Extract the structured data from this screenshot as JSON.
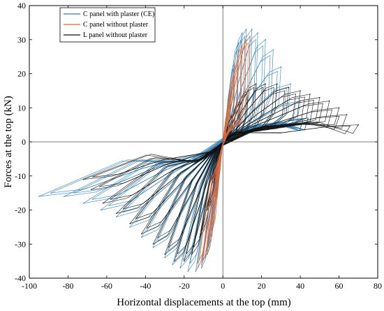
{
  "chart_data": {
    "type": "line",
    "xlabel": "Horizontal displacements at the top (mm)",
    "ylabel": "Forces at the top (kN)",
    "xlim": [
      -100,
      80
    ],
    "ylim": [
      -40,
      40
    ],
    "xticks": [
      -100,
      -80,
      -60,
      -40,
      -20,
      0,
      20,
      40,
      60,
      80
    ],
    "yticks": [
      -40,
      -30,
      -20,
      -10,
      0,
      10,
      20,
      30,
      40
    ],
    "grid": false,
    "zero_lines": true,
    "legend_position": "top-left",
    "series": [
      {
        "name": "C panel with plaster (CE)",
        "color": "#2f7fb5",
        "peak_points": [
          {
            "x": 2,
            "y": 4
          },
          {
            "x": 4,
            "y": 14
          },
          {
            "x": 6,
            "y": 23
          },
          {
            "x": 8,
            "y": 29
          },
          {
            "x": 10,
            "y": 32
          },
          {
            "x": 12,
            "y": 33
          },
          {
            "x": 15,
            "y": 33
          },
          {
            "x": 18,
            "y": 32
          },
          {
            "x": 22,
            "y": 30
          },
          {
            "x": 26,
            "y": 27
          },
          {
            "x": 30,
            "y": 22
          },
          {
            "x": 35,
            "y": 17
          },
          {
            "x": 40,
            "y": 12
          },
          {
            "x": 44,
            "y": 7
          }
        ],
        "valley_points": [
          {
            "x": -2,
            "y": -6
          },
          {
            "x": -4,
            "y": -16
          },
          {
            "x": -6,
            "y": -26
          },
          {
            "x": -8,
            "y": -33
          },
          {
            "x": -11,
            "y": -37
          },
          {
            "x": -14,
            "y": -38
          },
          {
            "x": -18,
            "y": -38
          },
          {
            "x": -22,
            "y": -37
          },
          {
            "x": -26,
            "y": -36
          },
          {
            "x": -30,
            "y": -34
          },
          {
            "x": -36,
            "y": -31
          },
          {
            "x": -42,
            "y": -28
          },
          {
            "x": -48,
            "y": -25
          },
          {
            "x": -55,
            "y": -22
          },
          {
            "x": -63,
            "y": -20
          },
          {
            "x": -72,
            "y": -18
          },
          {
            "x": -82,
            "y": -16
          },
          {
            "x": -95,
            "y": -16
          }
        ]
      },
      {
        "name": "C panel without plaster",
        "color": "#d9693b",
        "peak_points": [
          {
            "x": 1,
            "y": 3
          },
          {
            "x": 2,
            "y": 8
          },
          {
            "x": 4,
            "y": 14
          },
          {
            "x": 6,
            "y": 20
          },
          {
            "x": 8,
            "y": 24
          },
          {
            "x": 10,
            "y": 28
          },
          {
            "x": 12,
            "y": 30
          },
          {
            "x": 14,
            "y": 31
          }
        ],
        "valley_points": [
          {
            "x": -1,
            "y": -4
          },
          {
            "x": -2,
            "y": -10
          },
          {
            "x": -4,
            "y": -18
          },
          {
            "x": -5,
            "y": -25
          },
          {
            "x": -7,
            "y": -30
          },
          {
            "x": -9,
            "y": -34
          },
          {
            "x": -11,
            "y": -36
          },
          {
            "x": -13,
            "y": -37
          }
        ]
      },
      {
        "name": "L panel without plaster",
        "color": "#111111",
        "peak_points": [
          {
            "x": 2,
            "y": 4
          },
          {
            "x": 5,
            "y": 8
          },
          {
            "x": 9,
            "y": 12
          },
          {
            "x": 13,
            "y": 15
          },
          {
            "x": 17,
            "y": 17
          },
          {
            "x": 22,
            "y": 17
          },
          {
            "x": 28,
            "y": 17
          },
          {
            "x": 34,
            "y": 16
          },
          {
            "x": 40,
            "y": 15
          },
          {
            "x": 45,
            "y": 14
          },
          {
            "x": 50,
            "y": 13
          },
          {
            "x": 55,
            "y": 12
          },
          {
            "x": 60,
            "y": 10
          },
          {
            "x": 64,
            "y": 8
          },
          {
            "x": 70,
            "y": 5
          }
        ],
        "valley_points": [
          {
            "x": -2,
            "y": -6
          },
          {
            "x": -5,
            "y": -12
          },
          {
            "x": -8,
            "y": -20
          },
          {
            "x": -12,
            "y": -28
          },
          {
            "x": -16,
            "y": -33
          },
          {
            "x": -20,
            "y": -35
          },
          {
            "x": -25,
            "y": -35
          },
          {
            "x": -30,
            "y": -33
          },
          {
            "x": -36,
            "y": -30
          },
          {
            "x": -42,
            "y": -27
          },
          {
            "x": -48,
            "y": -24
          },
          {
            "x": -55,
            "y": -21
          },
          {
            "x": -62,
            "y": -18
          },
          {
            "x": -68,
            "y": -14
          },
          {
            "x": -72,
            "y": -11
          }
        ]
      }
    ]
  }
}
